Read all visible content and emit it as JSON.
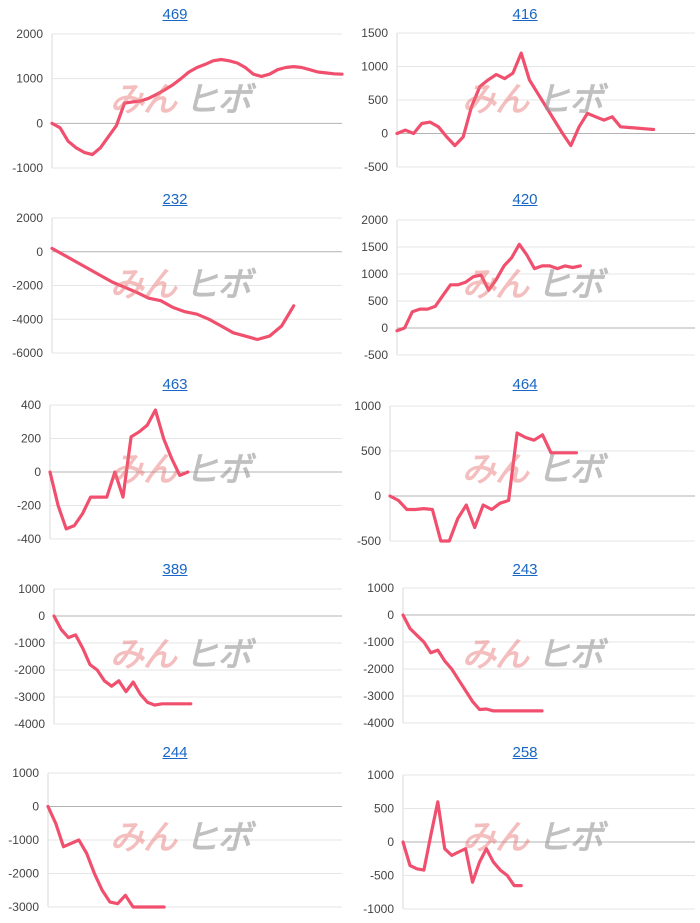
{
  "watermark": {
    "part1": "みん",
    "part2": "ヒボ"
  },
  "colors": {
    "line": "#f0506e",
    "title": "#1a66c4"
  },
  "chart_data": [
    {
      "type": "line",
      "title": "469",
      "ylim": [
        -1000,
        2000
      ],
      "ticks": [
        2000,
        1000,
        0,
        -1000
      ],
      "x": [
        0,
        1,
        2,
        3,
        4,
        5,
        6,
        7,
        8,
        9,
        10,
        11,
        12,
        13,
        14,
        15,
        16,
        17,
        18,
        19,
        20,
        21,
        22,
        23,
        24,
        25,
        26,
        27,
        28,
        29,
        30,
        31,
        32,
        33,
        34,
        35,
        36
      ],
      "series": [
        {
          "values": [
            0,
            -100,
            -400,
            -550,
            -650,
            -700,
            -550,
            -300,
            -50,
            450,
            480,
            500,
            560,
            650,
            750,
            860,
            1000,
            1150,
            1250,
            1320,
            1400,
            1430,
            1400,
            1350,
            1250,
            1100,
            1050,
            1100,
            1200,
            1250,
            1270,
            1250,
            1200,
            1150,
            1130,
            1110,
            1100
          ]
        }
      ]
    },
    {
      "type": "line",
      "title": "416",
      "ylim": [
        -500,
        1500
      ],
      "ticks": [
        1500,
        1000,
        500,
        0,
        -500
      ],
      "x": [
        0,
        1,
        2,
        3,
        4,
        5,
        6,
        7,
        8,
        9,
        10,
        11,
        12,
        13,
        14,
        15,
        16,
        17,
        18,
        19,
        20,
        21,
        22,
        23,
        24,
        25,
        26,
        27,
        28,
        29,
        30,
        31
      ],
      "series": [
        {
          "values": [
            0,
            50,
            0,
            150,
            170,
            100,
            -50,
            -180,
            -50,
            400,
            700,
            800,
            880,
            820,
            900,
            1200,
            800,
            600,
            400,
            200,
            0,
            -180,
            100,
            300,
            250,
            200,
            250,
            100,
            90,
            80,
            70,
            60
          ]
        }
      ]
    },
    {
      "type": "line",
      "title": "232",
      "ylim": [
        -6000,
        2000
      ],
      "ticks": [
        2000,
        0,
        -2000,
        -4000,
        -6000
      ],
      "x": [
        0,
        1,
        2,
        3,
        4,
        5,
        6,
        7,
        8,
        9,
        10,
        11,
        12,
        13,
        14,
        15,
        16,
        17,
        18,
        19,
        20
      ],
      "series": [
        {
          "values": [
            200,
            -200,
            -600,
            -1000,
            -1400,
            -1800,
            -2100,
            -2400,
            -2750,
            -2900,
            -3300,
            -3550,
            -3700,
            -4000,
            -4400,
            -4800,
            -5000,
            -5200,
            -5000,
            -4400,
            -3200
          ]
        }
      ]
    },
    {
      "type": "line",
      "title": "420",
      "ylim": [
        -500,
        2000
      ],
      "ticks": [
        2000,
        1500,
        1000,
        500,
        0,
        -500
      ],
      "x": [
        0,
        1,
        2,
        3,
        4,
        5,
        6,
        7,
        8,
        9,
        10,
        11,
        12,
        13,
        14,
        15,
        16,
        17,
        18,
        19,
        20,
        21,
        22,
        23,
        24
      ],
      "series": [
        {
          "values": [
            -50,
            0,
            300,
            350,
            350,
            400,
            600,
            800,
            800,
            850,
            950,
            980,
            700,
            900,
            1150,
            1300,
            1550,
            1350,
            1100,
            1150,
            1150,
            1100,
            1150,
            1120,
            1150
          ]
        }
      ]
    },
    {
      "type": "line",
      "title": "463",
      "ylim": [
        -400,
        400
      ],
      "ticks": [
        400,
        200,
        0,
        -200,
        -400
      ],
      "x": [
        0,
        1,
        2,
        3,
        4,
        5,
        6,
        7,
        8,
        9,
        10,
        11,
        12,
        13,
        14,
        15,
        16,
        17
      ],
      "series": [
        {
          "values": [
            0,
            -200,
            -340,
            -320,
            -250,
            -150,
            -150,
            -150,
            0,
            -150,
            210,
            240,
            280,
            370,
            200,
            80,
            -20,
            0
          ]
        }
      ]
    },
    {
      "type": "line",
      "title": "464",
      "ylim": [
        -500,
        1000
      ],
      "ticks": [
        1000,
        500,
        0,
        -500
      ],
      "x": [
        0,
        1,
        2,
        3,
        4,
        5,
        6,
        7,
        8,
        9,
        10,
        11,
        12,
        13,
        14,
        15,
        16,
        17,
        18,
        19,
        20,
        21,
        22
      ],
      "series": [
        {
          "values": [
            0,
            -50,
            -150,
            -150,
            -140,
            -150,
            -500,
            -500,
            -250,
            -100,
            -350,
            -100,
            -150,
            -80,
            -50,
            700,
            650,
            620,
            680,
            480,
            480,
            480,
            480
          ]
        }
      ]
    },
    {
      "type": "line",
      "title": "389",
      "ylim": [
        -4000,
        1000
      ],
      "ticks": [
        1000,
        0,
        -1000,
        -2000,
        -3000,
        -4000
      ],
      "x": [
        0,
        1,
        2,
        3,
        4,
        5,
        6,
        7,
        8,
        9,
        10,
        11,
        12,
        13,
        14,
        15,
        16,
        17,
        18,
        19
      ],
      "series": [
        {
          "values": [
            0,
            -500,
            -800,
            -700,
            -1200,
            -1800,
            -2000,
            -2400,
            -2600,
            -2400,
            -2800,
            -2450,
            -2900,
            -3200,
            -3300,
            -3250,
            -3250,
            -3250,
            -3250,
            -3250
          ]
        }
      ]
    },
    {
      "type": "line",
      "title": "243",
      "ylim": [
        -4000,
        1000
      ],
      "ticks": [
        1000,
        0,
        -1000,
        -2000,
        -3000,
        -4000
      ],
      "x": [
        0,
        1,
        2,
        3,
        4,
        5,
        6,
        7,
        8,
        9,
        10,
        11,
        12,
        13,
        14,
        15,
        16,
        17,
        18,
        19,
        20
      ],
      "series": [
        {
          "values": [
            0,
            -500,
            -750,
            -1000,
            -1400,
            -1300,
            -1700,
            -2000,
            -2400,
            -2800,
            -3200,
            -3500,
            -3480,
            -3550,
            -3550,
            -3550,
            -3550,
            -3550,
            -3550,
            -3550,
            -3550
          ]
        }
      ]
    },
    {
      "type": "line",
      "title": "244",
      "ylim": [
        -3000,
        1000
      ],
      "ticks": [
        1000,
        0,
        -1000,
        -2000,
        -3000
      ],
      "x": [
        0,
        1,
        2,
        3,
        4,
        5,
        6,
        7,
        8,
        9,
        10,
        11,
        12,
        13,
        14,
        15
      ],
      "series": [
        {
          "values": [
            0,
            -500,
            -1200,
            -1100,
            -1000,
            -1400,
            -2000,
            -2500,
            -2850,
            -2900,
            -2650,
            -3000,
            -3000,
            -3000,
            -3000,
            -3000
          ]
        }
      ]
    },
    {
      "type": "line",
      "title": "258",
      "ylim": [
        -1000,
        1000
      ],
      "ticks": [
        1000,
        500,
        0,
        -500,
        -1000
      ],
      "x": [
        0,
        1,
        2,
        3,
        4,
        5,
        6,
        7,
        8,
        9,
        10,
        11,
        12,
        13,
        14,
        15,
        16,
        17
      ],
      "series": [
        {
          "values": [
            0,
            -350,
            -400,
            -420,
            100,
            600,
            -100,
            -200,
            -150,
            -100,
            -600,
            -300,
            -100,
            -300,
            -420,
            -500,
            -650,
            -650
          ]
        }
      ]
    }
  ]
}
